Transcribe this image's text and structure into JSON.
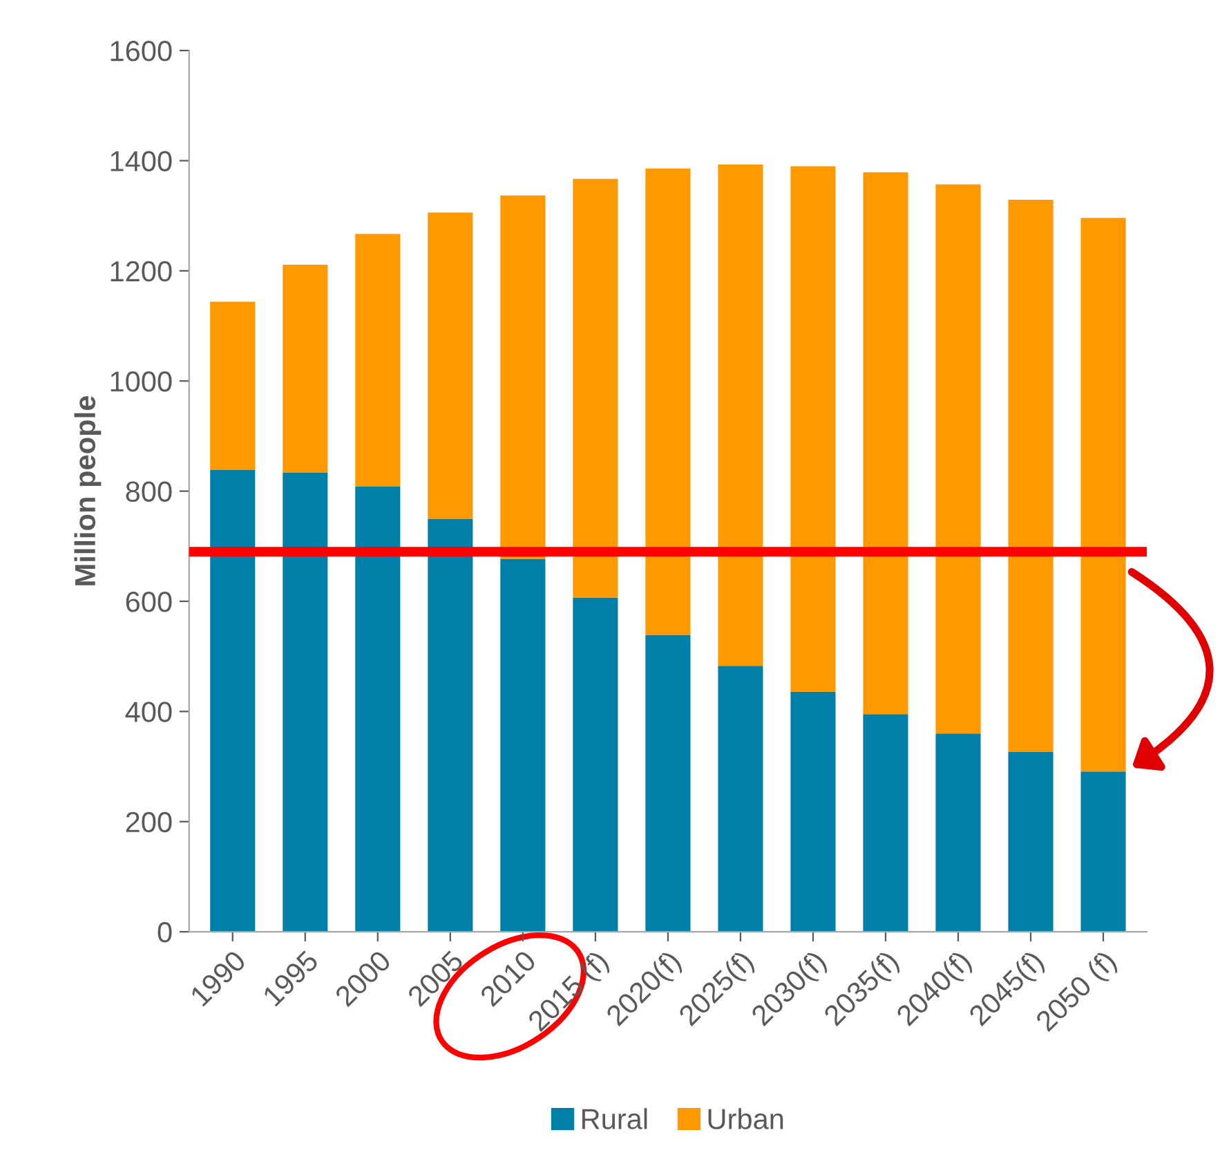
{
  "chart_data": {
    "type": "bar",
    "stacked": true,
    "ylabel": "Million people",
    "categories": [
      "1990",
      "1995",
      "2000",
      "2005",
      "2010",
      "2015 (f)",
      "2020(f)",
      "2025(f)",
      "2030(f)",
      "2035(f)",
      "2040(f)",
      "2045(f)",
      "2050 (f)"
    ],
    "series": [
      {
        "name": "Rural",
        "color": "#0080a8",
        "values": [
          839,
          834,
          809,
          750,
          677,
          607,
          539,
          483,
          436,
          395,
          360,
          327,
          291
        ]
      },
      {
        "name": "Urban",
        "color": "#ff9900",
        "values": [
          305,
          377,
          458,
          556,
          660,
          760,
          847,
          910,
          954,
          984,
          997,
          1002,
          1005
        ]
      }
    ],
    "ylim": [
      0,
      1600
    ],
    "yticks": [
      0,
      200,
      400,
      600,
      800,
      1000,
      1200,
      1400,
      1600
    ],
    "ref_lines": [
      {
        "axis": "y",
        "value": 690,
        "color": "#ff0000"
      }
    ],
    "legend": "bottom",
    "grid": false
  }
}
